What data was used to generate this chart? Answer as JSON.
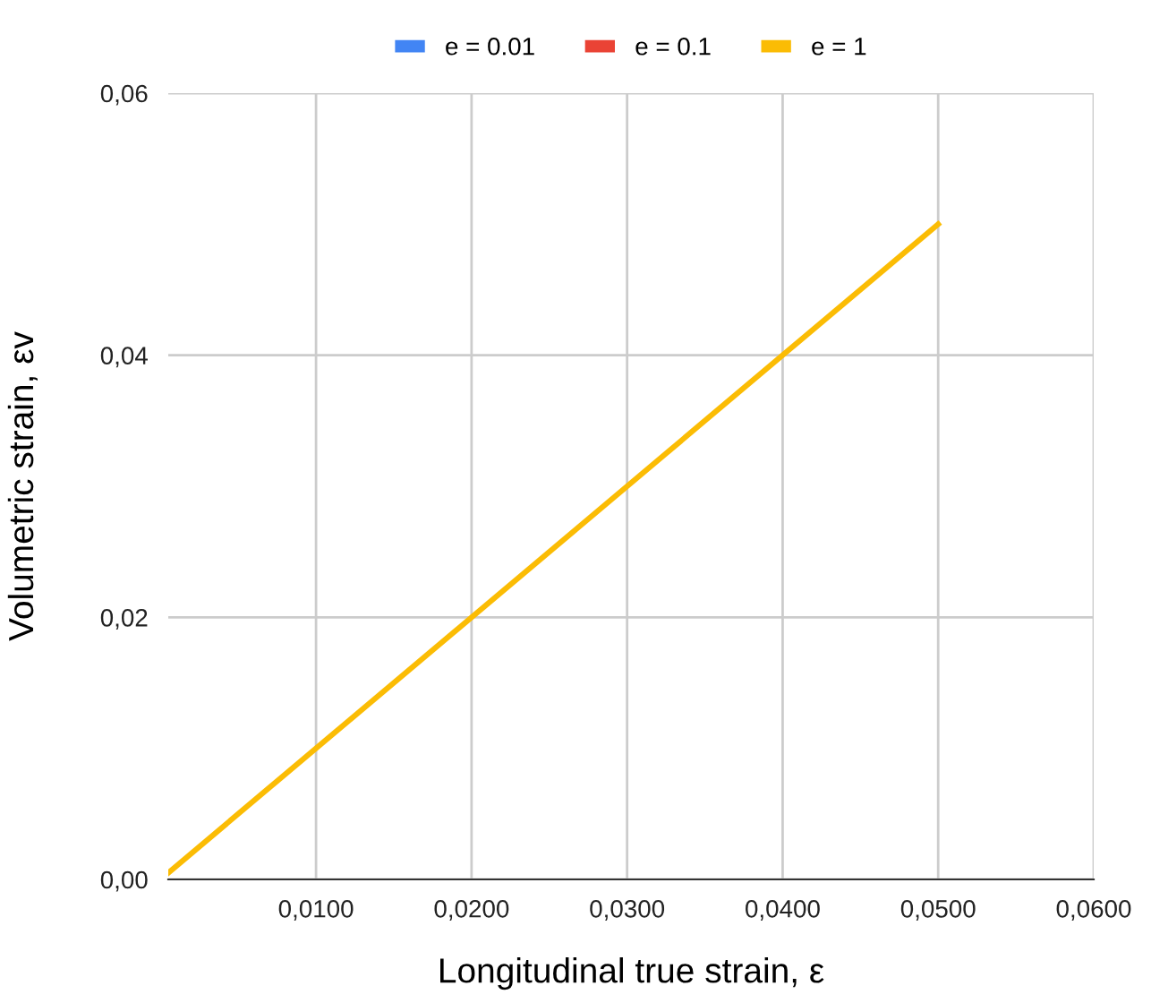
{
  "chart_data": {
    "type": "line",
    "xlabel": "Longitudinal true strain, ε",
    "ylabel": "Volumetric strain, εv",
    "x": [
      0.0005,
      0.05
    ],
    "series": [
      {
        "name": "e = 0.01",
        "color": "#4285f4",
        "values": [
          null,
          null
        ]
      },
      {
        "name": "e = 0.1",
        "color": "#ea4335",
        "values": [
          null,
          null
        ]
      },
      {
        "name": "e = 1",
        "color": "#fbbc04",
        "values": [
          0.0005,
          0.05
        ]
      }
    ],
    "xlim": [
      0.0005,
      0.06
    ],
    "xticks": [
      {
        "value": 0.01,
        "label": "0,0100"
      },
      {
        "value": 0.02,
        "label": "0,0200"
      },
      {
        "value": 0.03,
        "label": "0,0300"
      },
      {
        "value": 0.04,
        "label": "0,0400"
      },
      {
        "value": 0.05,
        "label": "0,0500"
      },
      {
        "value": 0.06,
        "label": "0,0600"
      }
    ],
    "ylim": [
      0,
      0.06
    ],
    "yticks": [
      {
        "value": 0,
        "label": "0,00"
      },
      {
        "value": 0.02,
        "label": "0,02"
      },
      {
        "value": 0.04,
        "label": "0,04"
      },
      {
        "value": 0.06,
        "label": "0,06"
      }
    ],
    "grid": true,
    "legend": "top",
    "marker": "none",
    "line_style": "solid"
  }
}
